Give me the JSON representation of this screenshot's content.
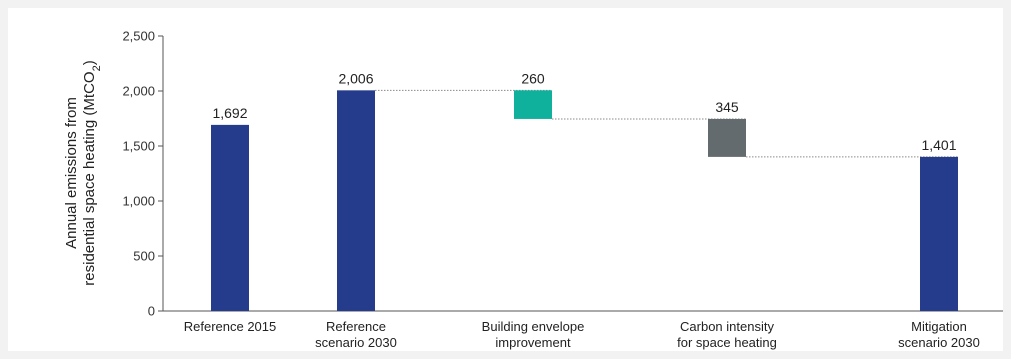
{
  "chart_data": {
    "type": "waterfall",
    "ylabel_main": "Annual emissions from",
    "ylabel_second": "residential space heating (MtCO",
    "ylabel_sub": "2",
    "ylabel_close": ")",
    "ylim": [
      0,
      2500
    ],
    "yticks": [
      0,
      500,
      1000,
      1500,
      2000,
      2500
    ],
    "ytick_labels": [
      "0",
      "500",
      "1,000",
      "1,500",
      "2,000",
      "2,500"
    ],
    "grid": false,
    "bars": [
      {
        "label_lines": [
          "Reference 2015"
        ],
        "kind": "total",
        "start": 0,
        "end": 1692,
        "value_label": "1,692",
        "color": "#253b8c"
      },
      {
        "label_lines": [
          "Reference",
          "scenario 2030"
        ],
        "kind": "total",
        "start": 0,
        "end": 2006,
        "value_label": "2,006",
        "color": "#253b8c"
      },
      {
        "label_lines": [
          "Building envelope",
          "improvement"
        ],
        "kind": "decrease",
        "start": 2006,
        "end": 1746,
        "value_label": "260",
        "color": "#0fb09c"
      },
      {
        "label_lines": [
          "Carbon intensity",
          "for space heating"
        ],
        "kind": "decrease",
        "start": 1746,
        "end": 1401,
        "value_label": "345",
        "color": "#636b6f"
      },
      {
        "label_lines": [
          "Mitigation",
          "scenario 2030"
        ],
        "kind": "total",
        "start": 0,
        "end": 1401,
        "value_label": "1,401",
        "color": "#253b8c"
      }
    ],
    "connector_color": "#8a8a8a"
  }
}
